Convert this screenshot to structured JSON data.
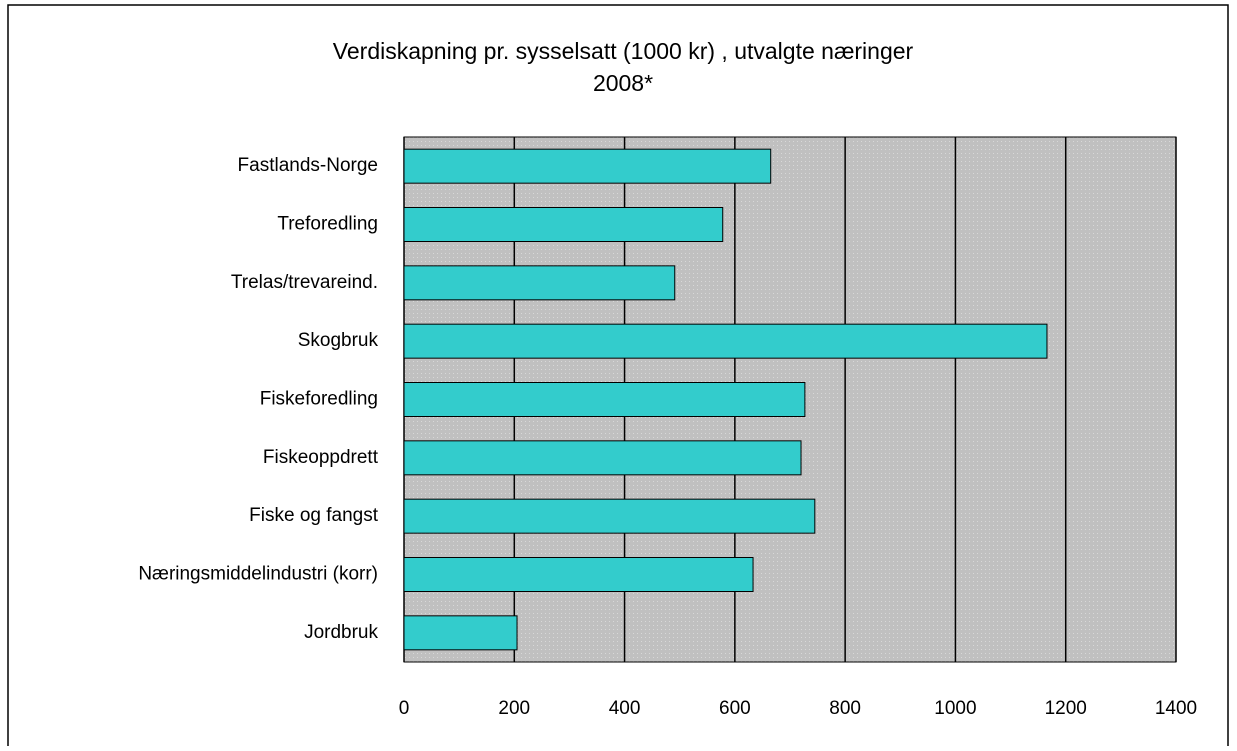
{
  "chart_data": {
    "type": "bar",
    "orientation": "horizontal",
    "title": [
      "Verdiskapning pr. sysselsatt (1000 kr) , utvalgte næringer",
      "2008*"
    ],
    "categories": [
      "Fastlands-Norge",
      "Treforedling",
      "Trelas/trevareind.",
      "Skogbruk",
      "Fiskeforedling",
      "Fiskeoppdrett",
      "Fiske og fangst",
      "Næringsmiddelindustri (korr)",
      "Jordbruk"
    ],
    "values": [
      665,
      578,
      491,
      1166,
      727,
      720,
      745,
      633,
      205
    ],
    "color": "#33cccc",
    "xlim": [
      0,
      1400
    ],
    "xticks": [
      0,
      200,
      400,
      600,
      800,
      1000,
      1200,
      1400
    ],
    "grid": true
  }
}
